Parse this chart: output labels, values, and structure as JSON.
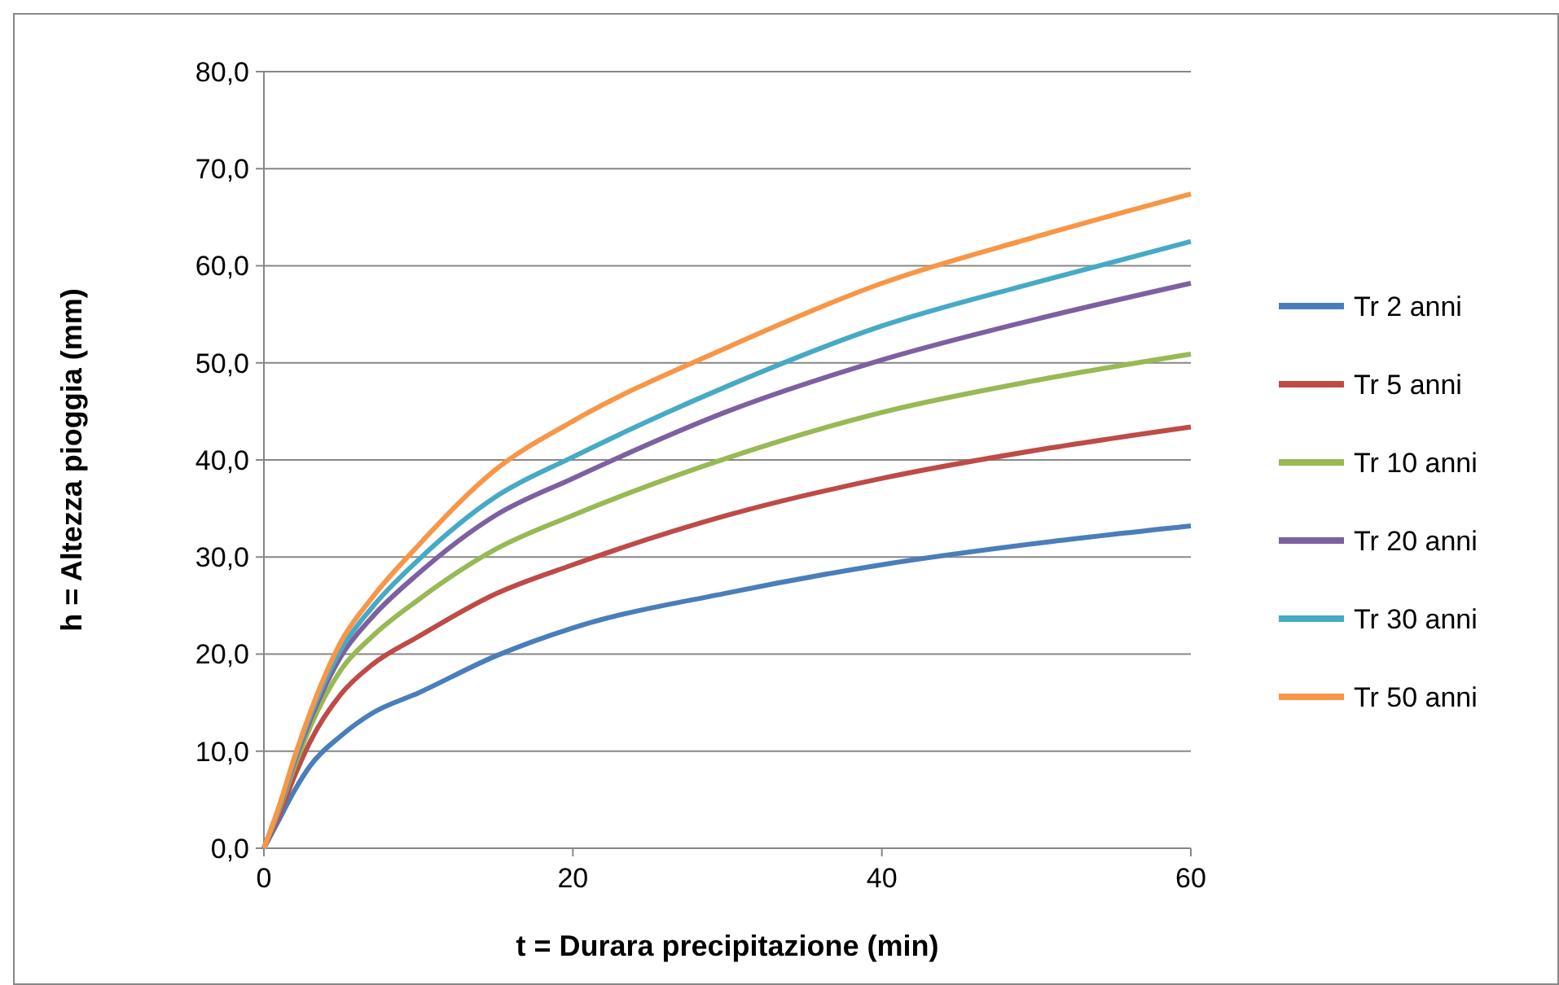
{
  "chart_data": {
    "type": "line",
    "xlabel": "t = Durara precipitazione (min)",
    "ylabel": "h = Altezza pioggia (mm)",
    "xlim": [
      0,
      60
    ],
    "xticks": [
      0,
      20,
      40,
      60
    ],
    "ylim": [
      0,
      80
    ],
    "yticks": [
      {
        "value": 0,
        "label": "0,0"
      },
      {
        "value": 10,
        "label": "10,0"
      },
      {
        "value": 20,
        "label": "20,0"
      },
      {
        "value": 30,
        "label": "30,0"
      },
      {
        "value": 40,
        "label": "40,0"
      },
      {
        "value": 50,
        "label": "50,0"
      },
      {
        "value": 60,
        "label": "60,0"
      },
      {
        "value": 70,
        "label": "70,0"
      },
      {
        "value": 80,
        "label": "80,0"
      }
    ],
    "grid": "y",
    "legend": "right",
    "marker": "none",
    "line_style": "solid",
    "x": [
      0,
      1,
      2,
      3,
      5,
      7,
      10,
      15,
      20,
      30,
      40,
      50,
      60
    ],
    "series": [
      {
        "name": "Tr 2 anni",
        "color": "#4a7ebb",
        "values": [
          0,
          3,
          6,
          8.5,
          11.6,
          13.9,
          16,
          19.8,
          22.7,
          26.3,
          29.2,
          31.4,
          33.2
        ]
      },
      {
        "name": "Tr 5 anni",
        "color": "#be4b48",
        "values": [
          0,
          3.5,
          7.5,
          11,
          15.9,
          18.9,
          21.8,
          26.2,
          29.2,
          34.3,
          38.1,
          41,
          43.4
        ]
      },
      {
        "name": "Tr 10 anni",
        "color": "#98b954",
        "values": [
          0,
          4,
          8.5,
          12.5,
          18.4,
          21.8,
          25.6,
          30.8,
          34.3,
          40.2,
          44.9,
          48.2,
          50.9
        ]
      },
      {
        "name": "Tr 20 anni",
        "color": "#7d60a0",
        "values": [
          0,
          4.2,
          9,
          13.2,
          19.8,
          23.8,
          28.3,
          34.3,
          38.1,
          45,
          50.3,
          54.5,
          58.2
        ]
      },
      {
        "name": "Tr 30 anni",
        "color": "#46aac5",
        "values": [
          0,
          4.3,
          9.2,
          13.6,
          20.5,
          24.8,
          29.7,
          36.2,
          40.3,
          47.6,
          53.8,
          58.3,
          62.5
        ]
      },
      {
        "name": "Tr 50 anni",
        "color": "#f79646",
        "values": [
          0,
          4.4,
          9.5,
          14,
          21.3,
          25.8,
          31.2,
          39,
          44,
          51.6,
          58.2,
          63,
          67.4
        ]
      }
    ]
  }
}
